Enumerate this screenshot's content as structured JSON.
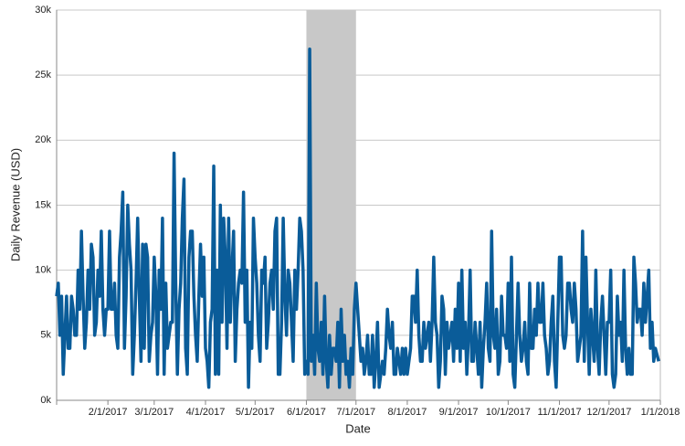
{
  "chart_data": {
    "type": "line",
    "xlabel": "Date",
    "ylabel": "Daily Revenue (USD)",
    "color": "#0a5c99",
    "grid": true,
    "highlight": {
      "start": "6/1/2017",
      "end": "7/1/2017",
      "color": "#c8c8c8"
    },
    "xlim": [
      "1/1/2017",
      "1/1/2018"
    ],
    "xticks": [
      "2/1/2017",
      "3/1/2017",
      "4/1/2017",
      "5/1/2017",
      "6/1/2017",
      "7/1/2017",
      "8/1/2017",
      "9/1/2017",
      "10/1/2017",
      "11/1/2017",
      "12/1/2017",
      "1/1/2018"
    ],
    "ylim": [
      0,
      30000
    ],
    "yticks": [
      {
        "value": 0,
        "label": "0k"
      },
      {
        "value": 5000,
        "label": "5k"
      },
      {
        "value": 10000,
        "label": "10k"
      },
      {
        "value": 15000,
        "label": "15k"
      },
      {
        "value": 20000,
        "label": "20k"
      },
      {
        "value": 25000,
        "label": "25k"
      },
      {
        "value": 30000,
        "label": "30k"
      }
    ],
    "x": [
      "1/1/2017",
      "1/2/2017",
      "1/3/2017",
      "1/4/2017",
      "1/5/2017",
      "1/6/2017",
      "1/7/2017",
      "1/8/2017",
      "1/9/2017",
      "1/10/2017",
      "1/11/2017",
      "1/12/2017",
      "1/13/2017",
      "1/14/2017",
      "1/15/2017",
      "1/16/2017",
      "1/17/2017",
      "1/18/2017",
      "1/19/2017",
      "1/20/2017",
      "1/21/2017",
      "1/22/2017",
      "1/23/2017",
      "1/24/2017",
      "1/25/2017",
      "1/26/2017",
      "1/27/2017",
      "1/28/2017",
      "1/29/2017",
      "1/30/2017",
      "1/31/2017",
      "2/1/2017",
      "2/2/2017",
      "2/3/2017",
      "2/4/2017",
      "2/5/2017",
      "2/6/2017",
      "2/7/2017",
      "2/8/2017",
      "2/9/2017",
      "2/10/2017",
      "2/11/2017",
      "2/12/2017",
      "2/13/2017",
      "2/14/2017",
      "2/15/2017",
      "2/16/2017",
      "2/17/2017",
      "2/18/2017",
      "2/19/2017",
      "2/20/2017",
      "2/21/2017",
      "2/22/2017",
      "2/23/2017",
      "2/24/2017",
      "2/25/2017",
      "2/26/2017",
      "2/27/2017",
      "2/28/2017",
      "3/1/2017",
      "3/2/2017",
      "3/3/2017",
      "3/4/2017",
      "3/5/2017",
      "3/6/2017",
      "3/7/2017",
      "3/8/2017",
      "3/9/2017",
      "3/10/2017",
      "3/11/2017",
      "3/12/2017",
      "3/13/2017",
      "3/14/2017",
      "3/15/2017",
      "3/16/2017",
      "3/17/2017",
      "3/18/2017",
      "3/19/2017",
      "3/20/2017",
      "3/21/2017",
      "3/22/2017",
      "3/23/2017",
      "3/24/2017",
      "3/25/2017",
      "3/26/2017",
      "3/27/2017",
      "3/28/2017",
      "3/29/2017",
      "3/30/2017",
      "3/31/2017",
      "4/1/2017",
      "4/2/2017",
      "4/3/2017",
      "4/4/2017",
      "4/5/2017",
      "4/6/2017",
      "4/7/2017",
      "4/8/2017",
      "4/9/2017",
      "4/10/2017",
      "4/11/2017",
      "4/12/2017",
      "4/13/2017",
      "4/14/2017",
      "4/15/2017",
      "4/16/2017",
      "4/17/2017",
      "4/18/2017",
      "4/19/2017",
      "4/20/2017",
      "4/21/2017",
      "4/22/2017",
      "4/23/2017",
      "4/24/2017",
      "4/25/2017",
      "4/26/2017",
      "4/27/2017",
      "4/28/2017",
      "4/29/2017",
      "4/30/2017",
      "5/1/2017",
      "5/2/2017",
      "5/3/2017",
      "5/4/2017",
      "5/5/2017",
      "5/6/2017",
      "5/7/2017",
      "5/8/2017",
      "5/9/2017",
      "5/10/2017",
      "5/11/2017",
      "5/12/2017",
      "5/13/2017",
      "5/14/2017",
      "5/15/2017",
      "5/16/2017",
      "5/17/2017",
      "5/18/2017",
      "5/19/2017",
      "5/20/2017",
      "5/21/2017",
      "5/22/2017",
      "5/23/2017",
      "5/24/2017",
      "5/25/2017",
      "5/26/2017",
      "5/27/2017",
      "5/28/2017",
      "5/29/2017",
      "5/30/2017",
      "5/31/2017",
      "6/1/2017",
      "6/2/2017",
      "6/3/2017",
      "6/4/2017",
      "6/5/2017",
      "6/6/2017",
      "6/7/2017",
      "6/8/2017",
      "6/9/2017",
      "6/10/2017",
      "6/11/2017",
      "6/12/2017",
      "6/13/2017",
      "6/14/2017",
      "6/15/2017",
      "6/16/2017",
      "6/17/2017",
      "6/18/2017",
      "6/19/2017",
      "6/20/2017",
      "6/21/2017",
      "6/22/2017",
      "6/23/2017",
      "6/24/2017",
      "6/25/2017",
      "6/26/2017",
      "6/27/2017",
      "6/28/2017",
      "6/29/2017",
      "6/30/2017",
      "7/1/2017",
      "7/2/2017",
      "7/3/2017",
      "7/4/2017",
      "7/5/2017",
      "7/6/2017",
      "7/7/2017",
      "7/8/2017",
      "7/9/2017",
      "7/10/2017",
      "7/11/2017",
      "7/12/2017",
      "7/13/2017",
      "7/14/2017",
      "7/15/2017",
      "7/16/2017",
      "7/17/2017",
      "7/18/2017",
      "7/19/2017",
      "7/20/2017",
      "7/21/2017",
      "7/22/2017",
      "7/23/2017",
      "7/24/2017",
      "7/25/2017",
      "7/26/2017",
      "7/27/2017",
      "7/28/2017",
      "7/29/2017",
      "7/30/2017",
      "7/31/2017",
      "8/1/2017",
      "8/2/2017",
      "8/3/2017",
      "8/4/2017",
      "8/5/2017",
      "8/6/2017",
      "8/7/2017",
      "8/8/2017",
      "8/9/2017",
      "8/10/2017",
      "8/11/2017",
      "8/12/2017",
      "8/13/2017",
      "8/14/2017",
      "8/15/2017",
      "8/16/2017",
      "8/17/2017",
      "8/18/2017",
      "8/19/2017",
      "8/20/2017",
      "8/21/2017",
      "8/22/2017",
      "8/23/2017",
      "8/24/2017",
      "8/25/2017",
      "8/26/2017",
      "8/27/2017",
      "8/28/2017",
      "8/29/2017",
      "8/30/2017",
      "8/31/2017",
      "9/1/2017",
      "9/2/2017",
      "9/3/2017",
      "9/4/2017",
      "9/5/2017",
      "9/6/2017",
      "9/7/2017",
      "9/8/2017",
      "9/9/2017",
      "9/10/2017",
      "9/11/2017",
      "9/12/2017",
      "9/13/2017",
      "9/14/2017",
      "9/15/2017",
      "9/16/2017",
      "9/17/2017",
      "9/18/2017",
      "9/19/2017",
      "9/20/2017",
      "9/21/2017",
      "9/22/2017",
      "9/23/2017",
      "9/24/2017",
      "9/25/2017",
      "9/26/2017",
      "9/27/2017",
      "9/28/2017",
      "9/29/2017",
      "9/30/2017",
      "10/1/2017",
      "10/2/2017",
      "10/3/2017",
      "10/4/2017",
      "10/5/2017",
      "10/6/2017",
      "10/7/2017",
      "10/8/2017",
      "10/9/2017",
      "10/10/2017",
      "10/11/2017",
      "10/12/2017",
      "10/13/2017",
      "10/14/2017",
      "10/15/2017",
      "10/16/2017",
      "10/17/2017",
      "10/18/2017",
      "10/19/2017",
      "10/20/2017",
      "10/21/2017",
      "10/22/2017",
      "10/23/2017",
      "10/24/2017",
      "10/25/2017",
      "10/26/2017",
      "10/27/2017",
      "10/28/2017",
      "10/29/2017",
      "10/30/2017",
      "10/31/2017",
      "11/1/2017",
      "11/2/2017",
      "11/3/2017",
      "11/4/2017",
      "11/5/2017",
      "11/6/2017",
      "11/7/2017",
      "11/8/2017",
      "11/9/2017",
      "11/10/2017",
      "11/11/2017",
      "11/12/2017",
      "11/13/2017",
      "11/14/2017",
      "11/15/2017",
      "11/16/2017",
      "11/17/2017",
      "11/18/2017",
      "11/19/2017",
      "11/20/2017",
      "11/21/2017",
      "11/22/2017",
      "11/23/2017",
      "11/24/2017",
      "11/25/2017",
      "11/26/2017",
      "11/27/2017",
      "11/28/2017",
      "11/29/2017",
      "11/30/2017",
      "12/1/2017",
      "12/2/2017",
      "12/3/2017",
      "12/4/2017",
      "12/5/2017",
      "12/6/2017",
      "12/7/2017",
      "12/8/2017",
      "12/9/2017",
      "12/10/2017",
      "12/11/2017",
      "12/12/2017",
      "12/13/2017",
      "12/14/2017",
      "12/15/2017",
      "12/16/2017",
      "12/17/2017",
      "12/18/2017",
      "12/19/2017",
      "12/20/2017",
      "12/21/2017",
      "12/22/2017",
      "12/23/2017",
      "12/24/2017",
      "12/25/2017",
      "12/26/2017",
      "12/27/2017",
      "12/28/2017",
      "12/29/2017",
      "12/30/2017",
      "12/31/2017"
    ],
    "values": [
      8000,
      9000,
      5000,
      8000,
      2000,
      5000,
      8000,
      4000,
      4000,
      8000,
      7000,
      5000,
      5000,
      10000,
      7000,
      13000,
      8000,
      4000,
      6000,
      10000,
      7000,
      12000,
      11000,
      5000,
      6000,
      10000,
      8000,
      13000,
      7000,
      5000,
      7000,
      7000,
      13000,
      7000,
      7000,
      9000,
      5000,
      4000,
      11000,
      13000,
      16000,
      4000,
      8000,
      15000,
      12000,
      10000,
      2000,
      5000,
      9000,
      14000,
      8000,
      3000,
      12000,
      4000,
      12000,
      11000,
      3000,
      5000,
      6000,
      11000,
      8000,
      2000,
      10000,
      7000,
      14000,
      2000,
      9000,
      4000,
      5000,
      6000,
      6000,
      19000,
      9000,
      2000,
      7000,
      9000,
      14000,
      17000,
      4000,
      2000,
      11000,
      13000,
      13000,
      8000,
      5000,
      3000,
      8000,
      12000,
      8000,
      11000,
      4000,
      3000,
      1000,
      6000,
      7000,
      18000,
      2000,
      10000,
      2000,
      15000,
      6000,
      14000,
      11000,
      4000,
      14000,
      6000,
      10000,
      13000,
      3000,
      7000,
      9000,
      10000,
      9000,
      16000,
      6000,
      10000,
      1000,
      6000,
      4000,
      14000,
      11000,
      9000,
      5000,
      3000,
      10000,
      9000,
      11000,
      4000,
      6000,
      9000,
      10000,
      7000,
      13000,
      14000,
      2000,
      2000,
      6000,
      14000,
      8000,
      5000,
      10000,
      9000,
      6000,
      3000,
      10000,
      7000,
      10000,
      14000,
      13000,
      10000,
      2000,
      3000,
      2000,
      27000,
      3000,
      5000,
      2000,
      9000,
      4000,
      3000,
      6000,
      2000,
      8000,
      3000,
      1000,
      5000,
      2000,
      4000,
      4000,
      3000,
      6000,
      1000,
      7000,
      3000,
      5000,
      2000,
      3000,
      1000,
      4000,
      2000,
      7000,
      9000,
      7000,
      5000,
      3000,
      4000,
      2000,
      3000,
      5000,
      2000,
      2000,
      5000,
      1000,
      3000,
      6000,
      1000,
      2000,
      3000,
      2000,
      4000,
      7000,
      5000,
      4000,
      6000,
      2000,
      2000,
      4000,
      3000,
      2000,
      4000,
      2000,
      4000,
      2000,
      3000,
      4000,
      8000,
      8000,
      6000,
      10000,
      5000,
      3000,
      3000,
      6000,
      4000,
      5000,
      6000,
      3000,
      6000,
      11000,
      6000,
      5000,
      1000,
      3000,
      8000,
      7000,
      2000,
      6000,
      4000,
      5000,
      6000,
      3000,
      7000,
      4000,
      9000,
      3000,
      10000,
      4000,
      6000,
      2000,
      5000,
      10000,
      3000,
      3000,
      6000,
      4000,
      2000,
      6000,
      1000,
      4000,
      6000,
      9000,
      4000,
      3000,
      13000,
      5000,
      4000,
      7000,
      2000,
      3000,
      8000,
      5000,
      5000,
      4000,
      9000,
      3000,
      11000,
      2000,
      1000,
      5000,
      9000,
      5000,
      3000,
      4000,
      6000,
      3000,
      2000,
      9000,
      4000,
      4000,
      7000,
      5000,
      9000,
      6000,
      6000,
      9000,
      5000,
      4000,
      2000,
      3000,
      6000,
      8000,
      3000,
      1000,
      6000,
      11000,
      11000,
      5000,
      4000,
      5000,
      9000,
      9000,
      7000,
      6000,
      9000,
      7000,
      3000,
      4000,
      5000,
      13000,
      3000,
      11000,
      6000,
      2000,
      7000,
      5000,
      3000,
      10000,
      4000,
      2000,
      6000,
      8000,
      5000,
      2000,
      6000,
      6000,
      10000,
      2000,
      1000,
      2000,
      8000,
      5000,
      6000,
      3000,
      10000,
      4000,
      2000,
      4000,
      2000,
      2000,
      11000,
      9000,
      6000,
      7000,
      7000,
      5000,
      9000,
      6000,
      8000,
      10000,
      4000,
      6000,
      3000,
      4000,
      3500,
      3000
    ]
  }
}
